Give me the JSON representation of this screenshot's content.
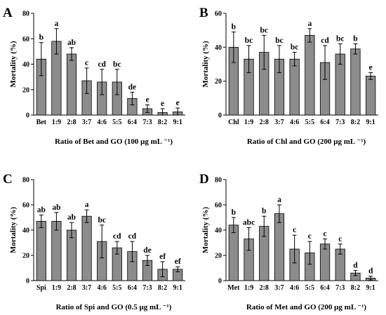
{
  "chart_data": [
    {
      "type": "bar",
      "panel_label": "A",
      "xlabel": "Ratio of Bet and GO (100 μg mL ⁻¹)",
      "ylabel": "Mortality (%)",
      "ylim": [
        0,
        80
      ],
      "yticks": [
        0,
        20,
        40,
        60,
        80
      ],
      "categories": [
        "Bet",
        "1:9",
        "2:8",
        "3:7",
        "4:6",
        "5:5",
        "6:4",
        "7:3",
        "8:2",
        "9:1"
      ],
      "values": [
        44,
        58,
        48,
        27,
        26,
        26,
        13,
        5,
        2,
        2.5
      ],
      "errors": [
        13,
        10,
        5,
        10,
        10,
        10,
        5,
        3,
        3,
        3
      ],
      "significance": [
        "b",
        "a",
        "ab",
        "c",
        "cd",
        "bc",
        "de",
        "e",
        "e",
        "e"
      ],
      "colors": {
        "bar": "#8c8c8c"
      }
    },
    {
      "type": "bar",
      "panel_label": "B",
      "xlabel": "Ratio of Chl and GO (200 μg mL ⁻¹)",
      "ylabel": "Mortality (%)",
      "ylim": [
        0,
        60
      ],
      "yticks": [
        0,
        20,
        40,
        60
      ],
      "categories": [
        "Chl",
        "1:9",
        "2:8",
        "3:7",
        "4:6",
        "5:5",
        "6:4",
        "7:3",
        "8:2",
        "9:1"
      ],
      "values": [
        40,
        33,
        37,
        33,
        33,
        47,
        31,
        36,
        39,
        23
      ],
      "errors": [
        9,
        8,
        10,
        8,
        4,
        4,
        10,
        6,
        3,
        2
      ],
      "significance": [
        "b",
        "bc",
        "bc",
        "bc",
        "bc",
        "a",
        "cd",
        "bc",
        "b",
        "e"
      ],
      "colors": {
        "bar": "#8c8c8c"
      }
    },
    {
      "type": "bar",
      "panel_label": "C",
      "xlabel": "Ratio of Spi and GO (0.5 μg mL ⁻¹)",
      "ylabel": "Mortality (%)",
      "ylim": [
        0,
        80
      ],
      "yticks": [
        0,
        20,
        40,
        60,
        80
      ],
      "categories": [
        "Spi",
        "1:9",
        "2:8",
        "3:7",
        "4:6",
        "5:5",
        "6:4",
        "7:3",
        "8:2",
        "9:1"
      ],
      "values": [
        47,
        47,
        40,
        51,
        31,
        26,
        23,
        16,
        9,
        9
      ],
      "errors": [
        5,
        7,
        6,
        5,
        13,
        5,
        8,
        4,
        6,
        2
      ],
      "significance": [
        "ab",
        "ab",
        "ab",
        "a",
        "bc",
        "cd",
        "cd",
        "de",
        "ef",
        "ef"
      ],
      "colors": {
        "bar": "#8c8c8c"
      }
    },
    {
      "type": "bar",
      "panel_label": "D",
      "xlabel": "Ratio of Met and GO (200 μg mL ⁻¹)",
      "ylabel": "Mortality (%)",
      "ylim": [
        0,
        80
      ],
      "yticks": [
        0,
        20,
        40,
        60,
        80
      ],
      "categories": [
        "Met",
        "1:9",
        "2:8",
        "3:7",
        "4:6",
        "5:5",
        "6:4",
        "7:3",
        "8:2",
        "9:1"
      ],
      "values": [
        44,
        33,
        43,
        53,
        25,
        22,
        29,
        25,
        6,
        2
      ],
      "errors": [
        6,
        9,
        8,
        7,
        11,
        9,
        4,
        4,
        2,
        1.5
      ],
      "significance": [
        "b",
        "abc",
        "b",
        "a",
        "c",
        "c",
        "c",
        "c",
        "d",
        "d"
      ],
      "colors": {
        "bar": "#8c8c8c"
      }
    }
  ]
}
